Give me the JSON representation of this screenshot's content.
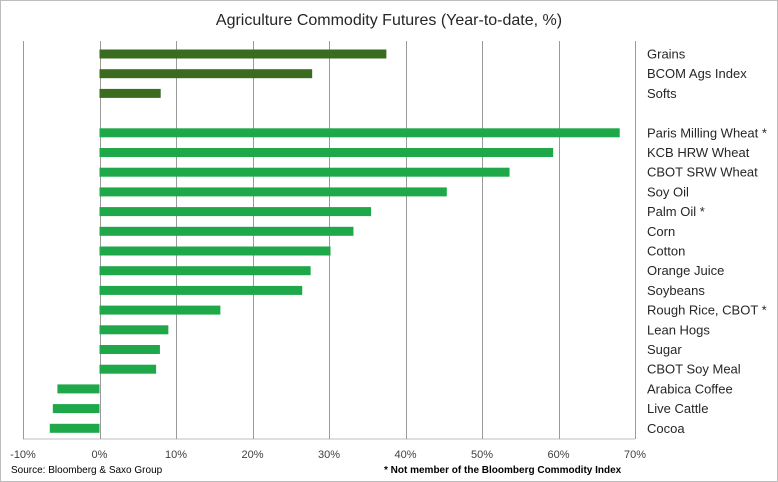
{
  "chart_data": {
    "type": "bar",
    "orientation": "horizontal",
    "title": "Agriculture Commodity Futures (Year-to-date, %)",
    "xlim": [
      -10,
      70
    ],
    "ticks": [
      -10,
      0,
      10,
      20,
      30,
      40,
      50,
      60,
      70
    ],
    "tick_labels": [
      "-10%",
      "0%",
      "10%",
      "20%",
      "30%",
      "40%",
      "50%",
      "60%",
      "70%"
    ],
    "grid": "vertical",
    "series": [
      {
        "color": "#3a6b1f",
        "categories": [
          "Grains",
          "BCOM Ags Index",
          "Softs"
        ],
        "values": [
          37.5,
          27.8,
          8.0
        ]
      },
      {
        "color": "#1ea84a",
        "categories": [
          "Paris Milling Wheat *",
          "KCB HRW Wheat",
          "CBOT SRW Wheat",
          "Soy Oil",
          "Palm Oil *",
          "Corn",
          "Cotton",
          "Orange Juice",
          "Soybeans",
          "Rough Rice, CBOT *",
          "Lean Hogs",
          "Sugar",
          "CBOT Soy Meal",
          "Arabica Coffee",
          "Live Cattle",
          "Cocoa"
        ],
        "values": [
          68.0,
          59.3,
          53.6,
          45.4,
          35.5,
          33.2,
          30.2,
          27.6,
          26.5,
          15.8,
          9.0,
          7.9,
          7.4,
          -5.5,
          -6.1,
          -6.5
        ]
      }
    ]
  },
  "footer": {
    "source": "Source: Bloomberg & Saxo Group",
    "note": "* Not member of the Bloomberg Commodity Index"
  }
}
